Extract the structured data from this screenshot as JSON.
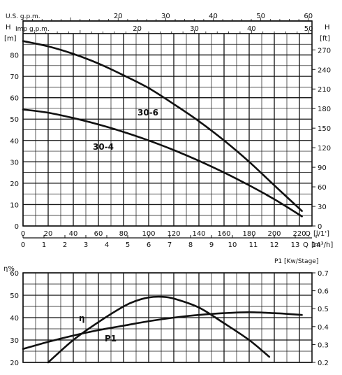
{
  "chart_data": [
    {
      "type": "line",
      "top_scales": {
        "us_gpm": {
          "label": "U.S.  g.p.m.",
          "ticks": [
            20,
            30,
            40,
            50,
            60
          ]
        },
        "imp_gpm": {
          "label": "Imp  g.p.m.",
          "ticks": [
            20,
            30,
            40,
            50
          ]
        }
      },
      "y_left": {
        "label": "H",
        "unit": "[m]",
        "range": [
          0,
          90
        ],
        "ticks": [
          0,
          10,
          20,
          30,
          40,
          50,
          60,
          70,
          80
        ]
      },
      "y_right": {
        "label": "H",
        "unit": "[ft]",
        "range": [
          0,
          295
        ],
        "ticks": [
          0,
          30,
          60,
          90,
          120,
          150,
          180,
          210,
          240,
          270
        ]
      },
      "x_lpm": {
        "label": "Q",
        "unit": "[l/1']",
        "range": [
          0,
          230
        ],
        "ticks": [
          0,
          20,
          40,
          60,
          80,
          100,
          120,
          140,
          160,
          180,
          200,
          220
        ]
      },
      "x_m3h": {
        "label": "Q",
        "unit": "[m³/h]",
        "ticks": [
          0,
          1,
          2,
          3,
          4,
          5,
          6,
          7,
          8,
          9,
          10,
          11,
          12,
          13,
          14
        ]
      },
      "series": [
        {
          "name": "30-6",
          "x": [
            0,
            20,
            40,
            60,
            80,
            100,
            120,
            140,
            160,
            180,
            200,
            222
          ],
          "y": [
            86.5,
            84,
            80.5,
            76,
            70.5,
            64.5,
            57,
            49,
            40,
            30,
            19,
            7
          ]
        },
        {
          "name": "30-4",
          "x": [
            0,
            20,
            40,
            60,
            80,
            100,
            120,
            140,
            160,
            180,
            200,
            222
          ],
          "y": [
            54.5,
            53,
            50.5,
            47.5,
            44,
            40,
            35.5,
            30.5,
            25,
            19,
            12.5,
            4.5
          ]
        }
      ]
    },
    {
      "type": "line",
      "title": "P1 [Kw/Stage]",
      "y_left": {
        "label": "η%",
        "range": [
          20,
          60
        ],
        "ticks": [
          20,
          30,
          40,
          50,
          60
        ]
      },
      "y_right": {
        "range": [
          0.2,
          0.7
        ],
        "ticks": [
          0.2,
          0.3,
          0.4,
          0.5,
          0.6,
          0.7
        ]
      },
      "x_range": [
        0,
        230
      ],
      "series": [
        {
          "name": "η",
          "axis": "left",
          "x": [
            20,
            40,
            60,
            80,
            90,
            100,
            110,
            120,
            140,
            160,
            180,
            196
          ],
          "y": [
            20,
            30,
            38,
            45,
            47.5,
            49,
            49.3,
            48.5,
            44.5,
            37.5,
            30,
            22.5
          ]
        },
        {
          "name": "P1",
          "axis": "right",
          "x": [
            0,
            20,
            40,
            60,
            80,
            100,
            120,
            140,
            160,
            180,
            200,
            222
          ],
          "y": [
            0.275,
            0.315,
            0.35,
            0.38,
            0.405,
            0.43,
            0.45,
            0.465,
            0.475,
            0.48,
            0.475,
            0.465
          ]
        }
      ]
    }
  ]
}
